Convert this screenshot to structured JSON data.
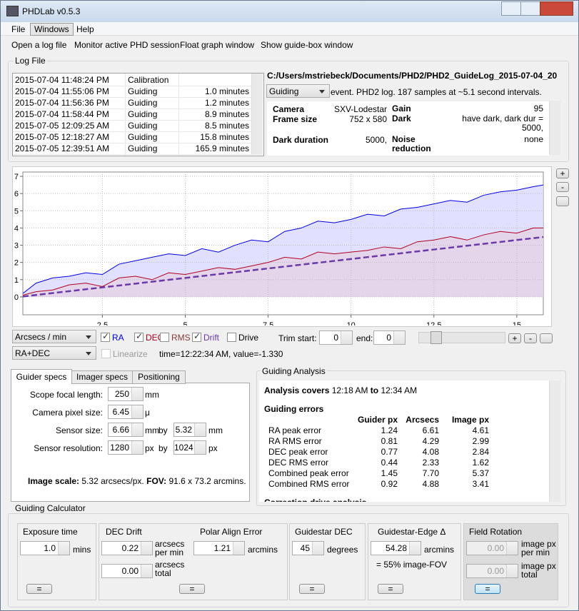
{
  "window": {
    "title": "PHDLab v0.5.3"
  },
  "menu": [
    "File",
    "Windows",
    "Help"
  ],
  "toolbar": [
    "Open a log file",
    "Monitor active PHD session",
    "Float graph window",
    "Show guide-box window"
  ],
  "log_file": {
    "label": "Log File",
    "rows": [
      [
        "2015-07-04 11:48:24 PM",
        "Calibration"
      ],
      [
        "2015-07-04 11:55:06 PM",
        "Guiding",
        "1.0 minutes"
      ],
      [
        "2015-07-04 11:56:36 PM",
        "Guiding",
        "1.2 minutes"
      ],
      [
        "2015-07-04 11:58:44 PM",
        "Guiding",
        "8.9 minutes"
      ],
      [
        "2015-07-05 12:09:25 AM",
        "Guiding",
        "8.5 minutes"
      ],
      [
        "2015-07-05 12:18:27 AM",
        "Guiding",
        "15.8 minutes"
      ],
      [
        "2015-07-05 12:39:51 AM",
        "Guiding",
        "165.9 minutes"
      ]
    ],
    "path": "C:/Users/mstriebeck/Documents/PHD2/PHD2_GuideLog_2015-07-04_20",
    "event_type": "Guiding",
    "summary": "event. PHD2 log. 187 samples at ~5.1 second intervals.",
    "info": [
      [
        "Camera",
        "SXV-Lodestar",
        "Gain",
        "95"
      ],
      [
        "Frame size",
        "752 x 580",
        "Dark",
        "have dark, dark dur = 5000,"
      ],
      [
        "Dark duration",
        "5000,",
        "Noise reduction",
        "none"
      ]
    ]
  },
  "chart_data": {
    "type": "line",
    "x": [
      0.1,
      0.5,
      1,
      1.5,
      2,
      2.5,
      3,
      3.5,
      4,
      4.5,
      5,
      5.5,
      6,
      6.5,
      7,
      7.5,
      8,
      8.5,
      9,
      9.5,
      10,
      10.5,
      11,
      11.5,
      12,
      12.5,
      13,
      13.5,
      14,
      14.5,
      15,
      15.5,
      15.8
    ],
    "series": [
      {
        "name": "RA",
        "color": "#0000e0",
        "fill": "#dcdcff",
        "checked": true,
        "values": [
          0.2,
          0.8,
          1.1,
          1.2,
          1.4,
          1.3,
          1.9,
          2.1,
          2.3,
          2.5,
          2.4,
          2.8,
          2.6,
          3.0,
          3.3,
          3.2,
          3.8,
          4.0,
          4.4,
          4.3,
          4.5,
          4.8,
          4.7,
          5.1,
          5.2,
          5.4,
          5.6,
          5.5,
          5.9,
          6.1,
          6.2,
          6.4,
          6.5
        ]
      },
      {
        "name": "DEC",
        "color": "#b00020",
        "fill": "#e4d2e6",
        "checked": true,
        "values": [
          0.1,
          0.3,
          0.4,
          0.7,
          0.8,
          0.6,
          1.1,
          1.2,
          1.0,
          1.4,
          1.3,
          1.5,
          1.7,
          1.6,
          1.8,
          2.0,
          2.3,
          2.2,
          2.6,
          2.5,
          2.6,
          2.7,
          2.9,
          2.8,
          3.2,
          3.3,
          3.5,
          3.3,
          3.6,
          3.8,
          3.7,
          4.0,
          4.0
        ]
      },
      {
        "name": "Drift",
        "color": "#6a3aa8",
        "dashed": true,
        "checked": true,
        "values": [
          0.022,
          0.11,
          0.22,
          0.33,
          0.44,
          0.55,
          0.66,
          0.77,
          0.88,
          0.99,
          1.1,
          1.21,
          1.32,
          1.43,
          1.54,
          1.65,
          1.76,
          1.87,
          1.98,
          2.09,
          2.2,
          2.31,
          2.42,
          2.53,
          2.64,
          2.75,
          2.86,
          2.97,
          3.08,
          3.19,
          3.3,
          3.41,
          3.476
        ]
      }
    ],
    "xlim": [
      0.1,
      15.8
    ],
    "xticks": [
      2.5,
      5,
      7.5,
      10,
      12.5,
      15
    ],
    "ylim": [
      -1.04,
      7.25
    ],
    "yticks": [
      0,
      1,
      2,
      3,
      4,
      5,
      6,
      7
    ],
    "grid": true
  },
  "graph_buttons": [
    "+",
    "-"
  ],
  "controls": {
    "units": "Arcsecs / min",
    "axis": "RA+DEC",
    "rms": {
      "label": "RMS",
      "checked": false,
      "color": "#8b3a3a"
    },
    "drive": {
      "label": "Drive",
      "checked": false
    },
    "linearize": "Linearize",
    "trim_start": "Trim start:",
    "start": "0",
    "end_label": "end:",
    "end": "0",
    "status": "time=12:22:34 AM, value=-1.330",
    "zoom_buttons": [
      "+",
      "-"
    ]
  },
  "tabs": [
    "Guider specs",
    "Imager specs",
    "Positioning"
  ],
  "guider_specs": {
    "fields": [
      {
        "label": "Scope focal length:",
        "value": "250",
        "unit": "mm"
      },
      {
        "label": "Camera pixel size:",
        "value": "6.45",
        "unit": "μ"
      },
      {
        "label": "Sensor size:",
        "value": "6.66",
        "unit": "mm",
        "by": "by",
        "value2": "5.32",
        "unit2": "mm"
      },
      {
        "label": "Sensor resolution:",
        "value": "1280",
        "unit": "px",
        "by": "by",
        "value2": "1024",
        "unit2": "px"
      }
    ],
    "scale_label": "Image scale:",
    "scale": "5.32 arcsecs/px.",
    "fov_label": "FOV:",
    "fov": "91.6 x 73.2 arcmins."
  },
  "guiding_analysis": {
    "label": "Guiding Analysis",
    "covers": "Analysis covers",
    "from": "12:18 AM",
    "to": "to",
    "until": "12:34 AM",
    "errors_title": "Guiding errors",
    "headers": [
      "Guider px",
      "Arcsecs",
      "Image px"
    ],
    "rows": [
      [
        "RA peak error",
        "1.24",
        "6.61",
        "4.61"
      ],
      [
        "RA RMS error",
        "0.81",
        "4.29",
        "2.99"
      ],
      [
        "DEC peak error",
        "0.77",
        "4.08",
        "2.84"
      ],
      [
        "DEC RMS error",
        "0.44",
        "2.33",
        "1.62"
      ],
      [
        "Combined peak error",
        "1.45",
        "7.70",
        "5.37"
      ],
      [
        "Combined RMS error",
        "0.92",
        "4.88",
        "3.41"
      ]
    ],
    "next_title": "Correction drive analysis"
  },
  "calculator": {
    "label": "Guiding Calculator",
    "button": "=",
    "exposure": {
      "title": "Exposure time",
      "value": "1.0",
      "unit": "mins"
    },
    "dec_drift": {
      "title": "DEC Drift",
      "rate": "0.22",
      "rate_unit": [
        "arcsecs",
        "per min"
      ],
      "total": "0.00",
      "total_unit": [
        "arcsecs",
        "total"
      ]
    },
    "polar": {
      "title": "Polar Align Error",
      "value": "1.21",
      "unit": "arcmins"
    },
    "guidestar_dec": {
      "title": "Guidestar DEC",
      "value": "45",
      "unit": "degrees"
    },
    "edge": {
      "title": "Guidestar-Edge Δ",
      "value": "54.28",
      "unit": "arcmins",
      "note": "= 55% image-FOV"
    },
    "rotation": {
      "title": "Field Rotation",
      "rate": "0.00",
      "rate_unit": [
        "image px",
        "per min"
      ],
      "total": "0.00",
      "total_unit": [
        "image px",
        "total"
      ]
    }
  }
}
